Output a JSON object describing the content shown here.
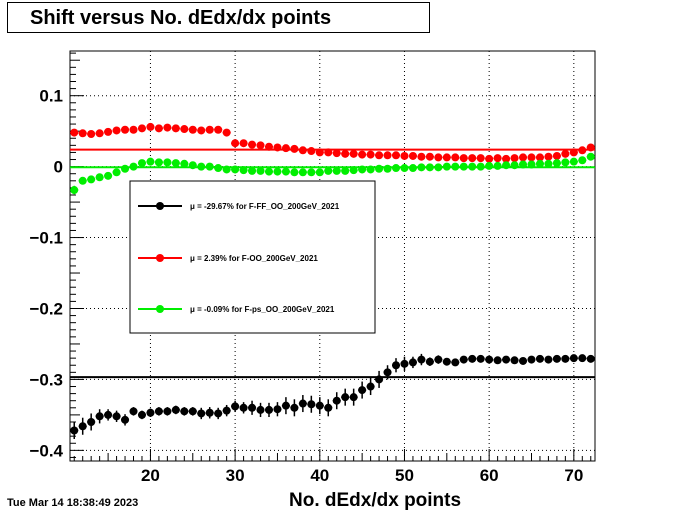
{
  "chart_data": {
    "type": "scatter",
    "title": "Shift versus No. dEdx/dx points",
    "xlabel": "No. dEdx/dx points",
    "ylabel": "",
    "xlim": [
      10.5,
      72.5
    ],
    "ylim": [
      -0.415,
      0.163
    ],
    "x_ticks": [
      20,
      30,
      40,
      50,
      60,
      70
    ],
    "y_ticks": [
      0.1,
      0,
      -0.1,
      -0.2,
      -0.3,
      -0.4
    ],
    "y_tick_labels": [
      "0.1",
      "0",
      "−0.1",
      "−0.2",
      "−0.3",
      "−0.4"
    ],
    "grid": true,
    "legend_position": "center-left",
    "series": [
      {
        "name": "μ = -29.67% for F-FF_OO_200GeV_2021",
        "color": "#000000",
        "line": -0.2967,
        "x": [
          11,
          12,
          13,
          14,
          15,
          16,
          17,
          18,
          19,
          20,
          21,
          22,
          23,
          24,
          25,
          26,
          27,
          28,
          29,
          30,
          31,
          32,
          33,
          34,
          35,
          36,
          37,
          38,
          39,
          40,
          41,
          42,
          43,
          44,
          45,
          46,
          47,
          48,
          49,
          50,
          51,
          52,
          53,
          54,
          55,
          56,
          57,
          58,
          59,
          60,
          61,
          62,
          63,
          64,
          65,
          66,
          67,
          68,
          69,
          70,
          71,
          72
        ],
        "y": [
          -0.372,
          -0.366,
          -0.36,
          -0.352,
          -0.35,
          -0.352,
          -0.357,
          -0.345,
          -0.35,
          -0.347,
          -0.345,
          -0.345,
          -0.343,
          -0.345,
          -0.345,
          -0.348,
          -0.347,
          -0.348,
          -0.344,
          -0.338,
          -0.34,
          -0.34,
          -0.343,
          -0.343,
          -0.342,
          -0.337,
          -0.34,
          -0.334,
          -0.335,
          -0.337,
          -0.34,
          -0.33,
          -0.325,
          -0.325,
          -0.315,
          -0.31,
          -0.3,
          -0.29,
          -0.28,
          -0.278,
          -0.276,
          -0.272,
          -0.275,
          -0.272,
          -0.275,
          -0.276,
          -0.272,
          -0.271,
          -0.271,
          -0.272,
          -0.273,
          -0.272,
          -0.273,
          -0.274,
          -0.272,
          -0.271,
          -0.272,
          -0.271,
          -0.271,
          -0.27,
          -0.27,
          -0.271
        ],
        "err": [
          0.012,
          0.012,
          0.012,
          0.01,
          0.008,
          0.008,
          0.008,
          0.006,
          0.006,
          0.006,
          0.006,
          0.006,
          0.006,
          0.006,
          0.006,
          0.008,
          0.008,
          0.008,
          0.008,
          0.008,
          0.008,
          0.01,
          0.01,
          0.01,
          0.01,
          0.012,
          0.012,
          0.012,
          0.012,
          0.012,
          0.012,
          0.012,
          0.012,
          0.012,
          0.012,
          0.012,
          0.012,
          0.01,
          0.01,
          0.01,
          0.008,
          0.008,
          0.006,
          0.006,
          0.005,
          0.005,
          0.005,
          0.005,
          0.005,
          0.005,
          0.005,
          0.005,
          0.005,
          0.005,
          0.005,
          0.005,
          0.005,
          0.005,
          0.005,
          0.005,
          0.005,
          0.005
        ]
      },
      {
        "name": "μ =  2.39% for F-OO_200GeV_2021",
        "color": "#ff0000",
        "line": 0.0239,
        "x": [
          11,
          12,
          13,
          14,
          15,
          16,
          17,
          18,
          19,
          20,
          21,
          22,
          23,
          24,
          25,
          26,
          27,
          28,
          29,
          30,
          31,
          32,
          33,
          34,
          35,
          36,
          37,
          38,
          39,
          40,
          41,
          42,
          43,
          44,
          45,
          46,
          47,
          48,
          49,
          50,
          51,
          52,
          53,
          54,
          55,
          56,
          57,
          58,
          59,
          60,
          61,
          62,
          63,
          64,
          65,
          66,
          67,
          68,
          69,
          70,
          71,
          72
        ],
        "y": [
          0.048,
          0.047,
          0.046,
          0.047,
          0.049,
          0.051,
          0.052,
          0.052,
          0.054,
          0.056,
          0.054,
          0.055,
          0.054,
          0.053,
          0.052,
          0.051,
          0.052,
          0.052,
          0.048,
          0.033,
          0.033,
          0.031,
          0.03,
          0.028,
          0.027,
          0.026,
          0.025,
          0.023,
          0.022,
          0.02,
          0.02,
          0.019,
          0.018,
          0.018,
          0.017,
          0.017,
          0.016,
          0.016,
          0.016,
          0.015,
          0.015,
          0.014,
          0.014,
          0.013,
          0.013,
          0.013,
          0.012,
          0.012,
          0.012,
          0.011,
          0.012,
          0.011,
          0.012,
          0.013,
          0.013,
          0.013,
          0.014,
          0.015,
          0.018,
          0.02,
          0.023,
          0.027
        ],
        "err": [
          0.004,
          0.004,
          0.004,
          0.004,
          0.004,
          0.004,
          0.004,
          0.004,
          0.004,
          0.004,
          0.004,
          0.004,
          0.004,
          0.004,
          0.004,
          0.004,
          0.004,
          0.004,
          0.004,
          0.004,
          0.004,
          0.004,
          0.004,
          0.004,
          0.004,
          0.004,
          0.004,
          0.004,
          0.004,
          0.004,
          0.004,
          0.004,
          0.004,
          0.004,
          0.004,
          0.004,
          0.004,
          0.004,
          0.004,
          0.004,
          0.004,
          0.004,
          0.004,
          0.004,
          0.004,
          0.004,
          0.004,
          0.004,
          0.004,
          0.004,
          0.004,
          0.004,
          0.004,
          0.004,
          0.004,
          0.004,
          0.004,
          0.004,
          0.004,
          0.004,
          0.004,
          0.004
        ]
      },
      {
        "name": "μ = -0.09% for F-ps_OO_200GeV_2021",
        "color": "#00ee00",
        "line": -0.0009,
        "x": [
          11,
          12,
          13,
          14,
          15,
          16,
          17,
          18,
          19,
          20,
          21,
          22,
          23,
          24,
          25,
          26,
          27,
          28,
          29,
          30,
          31,
          32,
          33,
          34,
          35,
          36,
          37,
          38,
          39,
          40,
          41,
          42,
          43,
          44,
          45,
          46,
          47,
          48,
          49,
          50,
          51,
          52,
          53,
          54,
          55,
          56,
          57,
          58,
          59,
          60,
          61,
          62,
          63,
          64,
          65,
          66,
          67,
          68,
          69,
          70,
          71,
          72
        ],
        "y": [
          -0.033,
          -0.02,
          -0.018,
          -0.015,
          -0.013,
          -0.008,
          -0.003,
          0.0,
          0.005,
          0.007,
          0.006,
          0.006,
          0.005,
          0.004,
          0.002,
          0.0,
          0.0,
          -0.002,
          -0.004,
          -0.004,
          -0.005,
          -0.006,
          -0.006,
          -0.007,
          -0.007,
          -0.007,
          -0.008,
          -0.008,
          -0.008,
          -0.008,
          -0.006,
          -0.006,
          -0.006,
          -0.005,
          -0.004,
          -0.004,
          -0.003,
          -0.003,
          -0.002,
          -0.002,
          -0.002,
          -0.001,
          -0.001,
          -0.001,
          0.0,
          0.0,
          0.0,
          0.0,
          0.0,
          0.001,
          0.001,
          0.002,
          0.002,
          0.003,
          0.003,
          0.004,
          0.004,
          0.005,
          0.006,
          0.007,
          0.009,
          0.014
        ],
        "err": [
          0.006,
          0.005,
          0.005,
          0.004,
          0.004,
          0.004,
          0.004,
          0.004,
          0.004,
          0.004,
          0.004,
          0.004,
          0.004,
          0.004,
          0.004,
          0.004,
          0.004,
          0.004,
          0.004,
          0.004,
          0.004,
          0.004,
          0.004,
          0.004,
          0.004,
          0.004,
          0.004,
          0.004,
          0.004,
          0.004,
          0.004,
          0.004,
          0.004,
          0.004,
          0.004,
          0.004,
          0.004,
          0.004,
          0.004,
          0.004,
          0.004,
          0.004,
          0.004,
          0.004,
          0.004,
          0.004,
          0.004,
          0.004,
          0.004,
          0.004,
          0.004,
          0.004,
          0.004,
          0.004,
          0.004,
          0.004,
          0.004,
          0.004,
          0.004,
          0.004,
          0.004,
          0.004
        ]
      }
    ]
  },
  "datestamp": "Tue Mar 14 18:38:49 2023"
}
